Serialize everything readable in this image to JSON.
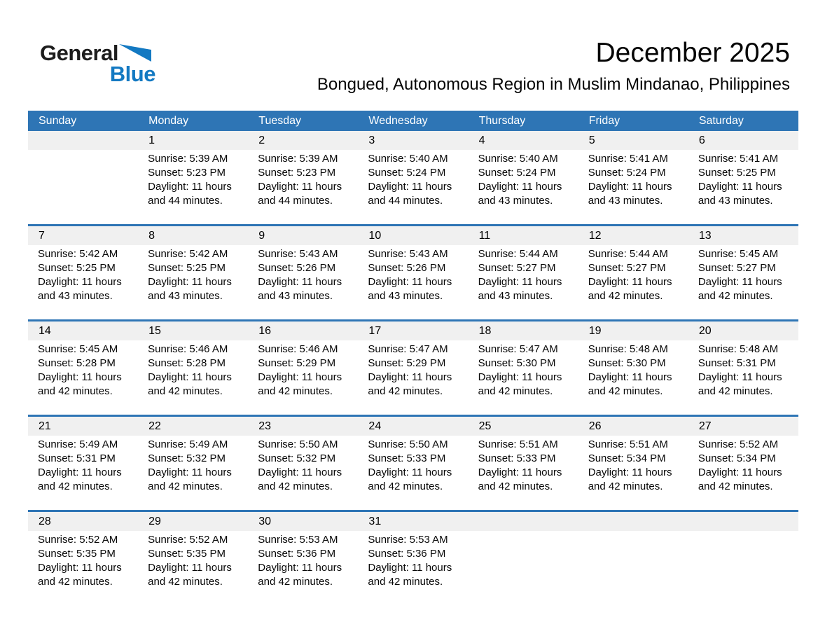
{
  "logo": {
    "general": "General",
    "blue": "Blue"
  },
  "header": {
    "title": "December 2025",
    "subtitle": "Bongued, Autonomous Region in Muslim Mindanao, Philippines"
  },
  "colors": {
    "header_blue": "#2E75B5",
    "separator_blue": "#2E75B5",
    "band_gray": "#F0F0F0",
    "logo_blue": "#1379C2",
    "weekday_text": "#FFFFFF"
  },
  "calendar": {
    "weekdays": [
      "Sunday",
      "Monday",
      "Tuesday",
      "Wednesday",
      "Thursday",
      "Friday",
      "Saturday"
    ],
    "weeks": [
      [
        null,
        {
          "day": "1",
          "lines": [
            "Sunrise: 5:39 AM",
            "Sunset: 5:23 PM",
            "Daylight: 11 hours",
            "and 44 minutes."
          ]
        },
        {
          "day": "2",
          "lines": [
            "Sunrise: 5:39 AM",
            "Sunset: 5:23 PM",
            "Daylight: 11 hours",
            "and 44 minutes."
          ]
        },
        {
          "day": "3",
          "lines": [
            "Sunrise: 5:40 AM",
            "Sunset: 5:24 PM",
            "Daylight: 11 hours",
            "and 44 minutes."
          ]
        },
        {
          "day": "4",
          "lines": [
            "Sunrise: 5:40 AM",
            "Sunset: 5:24 PM",
            "Daylight: 11 hours",
            "and 43 minutes."
          ]
        },
        {
          "day": "5",
          "lines": [
            "Sunrise: 5:41 AM",
            "Sunset: 5:24 PM",
            "Daylight: 11 hours",
            "and 43 minutes."
          ]
        },
        {
          "day": "6",
          "lines": [
            "Sunrise: 5:41 AM",
            "Sunset: 5:25 PM",
            "Daylight: 11 hours",
            "and 43 minutes."
          ]
        }
      ],
      [
        {
          "day": "7",
          "lines": [
            "Sunrise: 5:42 AM",
            "Sunset: 5:25 PM",
            "Daylight: 11 hours",
            "and 43 minutes."
          ]
        },
        {
          "day": "8",
          "lines": [
            "Sunrise: 5:42 AM",
            "Sunset: 5:25 PM",
            "Daylight: 11 hours",
            "and 43 minutes."
          ]
        },
        {
          "day": "9",
          "lines": [
            "Sunrise: 5:43 AM",
            "Sunset: 5:26 PM",
            "Daylight: 11 hours",
            "and 43 minutes."
          ]
        },
        {
          "day": "10",
          "lines": [
            "Sunrise: 5:43 AM",
            "Sunset: 5:26 PM",
            "Daylight: 11 hours",
            "and 43 minutes."
          ]
        },
        {
          "day": "11",
          "lines": [
            "Sunrise: 5:44 AM",
            "Sunset: 5:27 PM",
            "Daylight: 11 hours",
            "and 43 minutes."
          ]
        },
        {
          "day": "12",
          "lines": [
            "Sunrise: 5:44 AM",
            "Sunset: 5:27 PM",
            "Daylight: 11 hours",
            "and 42 minutes."
          ]
        },
        {
          "day": "13",
          "lines": [
            "Sunrise: 5:45 AM",
            "Sunset: 5:27 PM",
            "Daylight: 11 hours",
            "and 42 minutes."
          ]
        }
      ],
      [
        {
          "day": "14",
          "lines": [
            "Sunrise: 5:45 AM",
            "Sunset: 5:28 PM",
            "Daylight: 11 hours",
            "and 42 minutes."
          ]
        },
        {
          "day": "15",
          "lines": [
            "Sunrise: 5:46 AM",
            "Sunset: 5:28 PM",
            "Daylight: 11 hours",
            "and 42 minutes."
          ]
        },
        {
          "day": "16",
          "lines": [
            "Sunrise: 5:46 AM",
            "Sunset: 5:29 PM",
            "Daylight: 11 hours",
            "and 42 minutes."
          ]
        },
        {
          "day": "17",
          "lines": [
            "Sunrise: 5:47 AM",
            "Sunset: 5:29 PM",
            "Daylight: 11 hours",
            "and 42 minutes."
          ]
        },
        {
          "day": "18",
          "lines": [
            "Sunrise: 5:47 AM",
            "Sunset: 5:30 PM",
            "Daylight: 11 hours",
            "and 42 minutes."
          ]
        },
        {
          "day": "19",
          "lines": [
            "Sunrise: 5:48 AM",
            "Sunset: 5:30 PM",
            "Daylight: 11 hours",
            "and 42 minutes."
          ]
        },
        {
          "day": "20",
          "lines": [
            "Sunrise: 5:48 AM",
            "Sunset: 5:31 PM",
            "Daylight: 11 hours",
            "and 42 minutes."
          ]
        }
      ],
      [
        {
          "day": "21",
          "lines": [
            "Sunrise: 5:49 AM",
            "Sunset: 5:31 PM",
            "Daylight: 11 hours",
            "and 42 minutes."
          ]
        },
        {
          "day": "22",
          "lines": [
            "Sunrise: 5:49 AM",
            "Sunset: 5:32 PM",
            "Daylight: 11 hours",
            "and 42 minutes."
          ]
        },
        {
          "day": "23",
          "lines": [
            "Sunrise: 5:50 AM",
            "Sunset: 5:32 PM",
            "Daylight: 11 hours",
            "and 42 minutes."
          ]
        },
        {
          "day": "24",
          "lines": [
            "Sunrise: 5:50 AM",
            "Sunset: 5:33 PM",
            "Daylight: 11 hours",
            "and 42 minutes."
          ]
        },
        {
          "day": "25",
          "lines": [
            "Sunrise: 5:51 AM",
            "Sunset: 5:33 PM",
            "Daylight: 11 hours",
            "and 42 minutes."
          ]
        },
        {
          "day": "26",
          "lines": [
            "Sunrise: 5:51 AM",
            "Sunset: 5:34 PM",
            "Daylight: 11 hours",
            "and 42 minutes."
          ]
        },
        {
          "day": "27",
          "lines": [
            "Sunrise: 5:52 AM",
            "Sunset: 5:34 PM",
            "Daylight: 11 hours",
            "and 42 minutes."
          ]
        }
      ],
      [
        {
          "day": "28",
          "lines": [
            "Sunrise: 5:52 AM",
            "Sunset: 5:35 PM",
            "Daylight: 11 hours",
            "and 42 minutes."
          ]
        },
        {
          "day": "29",
          "lines": [
            "Sunrise: 5:52 AM",
            "Sunset: 5:35 PM",
            "Daylight: 11 hours",
            "and 42 minutes."
          ]
        },
        {
          "day": "30",
          "lines": [
            "Sunrise: 5:53 AM",
            "Sunset: 5:36 PM",
            "Daylight: 11 hours",
            "and 42 minutes."
          ]
        },
        {
          "day": "31",
          "lines": [
            "Sunrise: 5:53 AM",
            "Sunset: 5:36 PM",
            "Daylight: 11 hours",
            "and 42 minutes."
          ]
        },
        null,
        null,
        null
      ]
    ]
  }
}
